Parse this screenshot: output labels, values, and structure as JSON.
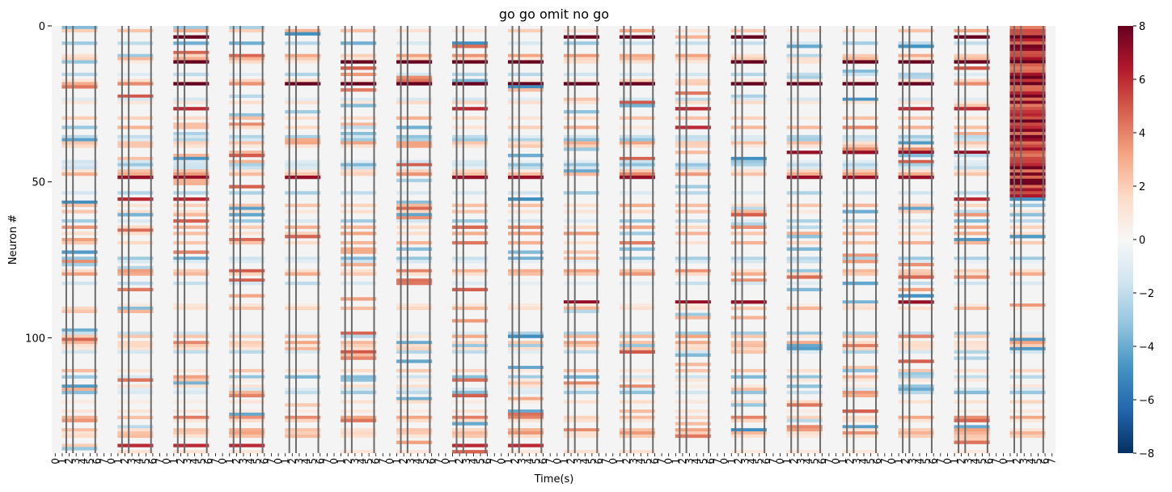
{
  "chart_data": {
    "type": "heatmap",
    "title": "go go omit no go",
    "xlabel": "Time(s)",
    "ylabel": "Neuron #",
    "ylim": [
      0,
      137
    ],
    "y_ticks": [
      0,
      50,
      100
    ],
    "n_neurons": 137,
    "n_panels": 18,
    "x_tick_labels": [
      "0",
      "1",
      "2",
      "3",
      "4",
      "5",
      "6",
      "7",
      "0",
      "1",
      "2",
      "3",
      "4",
      "5",
      "6",
      "7",
      "0",
      "1",
      "2",
      "3",
      "4",
      "5",
      "6",
      "7",
      "0",
      "1",
      "2",
      "3",
      "4",
      "5",
      "6",
      "7",
      "0",
      "1",
      "2",
      "3",
      "4",
      "5",
      "6",
      "7",
      "0",
      "1",
      "2",
      "3",
      "4",
      "5",
      "6",
      "7",
      "0",
      "1",
      "2",
      "3",
      "4",
      "5",
      "6",
      "7",
      "0",
      "1",
      "2",
      "3",
      "4",
      "5",
      "6",
      "7",
      "0",
      "1",
      "2",
      "3",
      "4",
      "5",
      "6",
      "7",
      "0",
      "1",
      "2",
      "3",
      "4",
      "5",
      "6",
      "7",
      "0",
      "1",
      "2",
      "3",
      "4",
      "5",
      "6",
      "7",
      "0",
      "1",
      "2",
      "3",
      "4",
      "5",
      "6",
      "7",
      "0",
      "1",
      "2",
      "3",
      "4",
      "5",
      "6",
      "7",
      "0",
      "1",
      "2",
      "3",
      "4",
      "5",
      "6",
      "7",
      "0",
      "1",
      "2",
      "3",
      "4",
      "5",
      "6",
      "7",
      "0",
      "1",
      "2",
      "3",
      "4",
      "5",
      "6",
      "7",
      "0",
      "1",
      "2",
      "3",
      "4",
      "5",
      "6",
      "7",
      "0",
      "1",
      "2",
      "3",
      "4",
      "5",
      "6",
      "7"
    ],
    "colorbar": {
      "min": -8,
      "max": 8,
      "ticks": [
        8,
        6,
        4,
        2,
        0,
        -2,
        -4,
        -6,
        -8
      ],
      "colormap": "RdBu_r",
      "colors": [
        "#053061",
        "#2166ac",
        "#4393c3",
        "#92c5de",
        "#d1e5f0",
        "#f7f7f7",
        "#fddbc7",
        "#f4a582",
        "#d6604d",
        "#b2182b",
        "#67001f"
      ]
    },
    "grid": false,
    "responses": [
      {
        "neuron": 3,
        "panels": [
          2,
          9,
          10,
          12,
          16,
          17
        ],
        "value": 8
      },
      {
        "neuron": 11,
        "panels": [
          2,
          5,
          6,
          7,
          8,
          12,
          14,
          15,
          16,
          17
        ],
        "value": 8
      },
      {
        "neuron": 18,
        "panels": [
          2,
          4,
          5,
          6,
          7,
          8,
          9,
          10,
          12,
          13,
          14,
          15,
          17
        ],
        "value": 8
      },
      {
        "neuron": 26,
        "panels": [
          2,
          7,
          11,
          15,
          16
        ],
        "value": 6
      },
      {
        "neuron": 32,
        "panels": [
          11,
          17
        ],
        "value": 6
      },
      {
        "neuron": 40,
        "panels": [
          13,
          14,
          15,
          16
        ],
        "value": 7
      },
      {
        "neuron": 48,
        "panels": [
          1,
          2,
          4,
          7,
          8,
          10,
          13,
          14,
          15
        ],
        "value": 7
      },
      {
        "neuron": 55,
        "panels": [
          1,
          2,
          16
        ],
        "value": 6
      },
      {
        "neuron": 88,
        "panels": [
          9,
          11,
          12,
          15
        ],
        "value": 7
      },
      {
        "neuron": 134,
        "panels": [
          1,
          2,
          3,
          7,
          8
        ],
        "value": 6
      }
    ]
  }
}
